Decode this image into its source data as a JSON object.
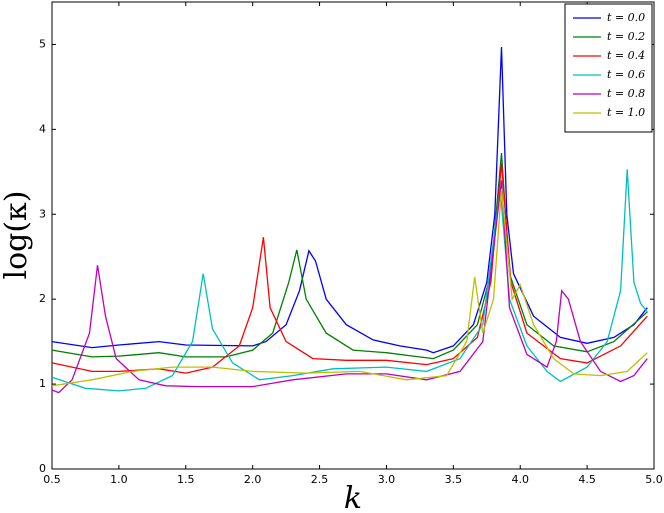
{
  "chart_data": {
    "type": "line",
    "x_label": "k",
    "y_label": "log(κ)",
    "xlim": [
      0.5,
      5.0
    ],
    "ylim": [
      0,
      5.5
    ],
    "xticks": [
      0.5,
      {
        "value": 1,
        "label": "1.0"
      },
      1.5,
      {
        "value": 2,
        "label": "2.0"
      },
      2.5,
      {
        "value": 3,
        "label": "3.0"
      },
      3.5,
      {
        "value": 4,
        "label": "4.0"
      },
      4.5,
      {
        "value": 5,
        "label": "5.0"
      }
    ],
    "yticks": [
      0,
      1,
      2,
      3,
      4,
      5
    ],
    "legend": "upper right",
    "series": [
      {
        "name": "t = 0.0",
        "color": "#0000ff",
        "x": [
          0.5,
          0.8,
          1.0,
          1.3,
          1.5,
          2.0,
          2.1,
          2.25,
          2.35,
          2.42,
          2.47,
          2.55,
          2.7,
          2.9,
          3.1,
          3.3,
          3.35,
          3.5,
          3.65,
          3.75,
          3.81,
          3.86,
          3.9,
          3.95,
          4.1,
          4.3,
          4.5,
          4.7,
          4.85,
          4.95
        ],
        "values": [
          1.5,
          1.43,
          1.46,
          1.5,
          1.46,
          1.45,
          1.5,
          1.7,
          2.1,
          2.57,
          2.45,
          2.0,
          1.7,
          1.52,
          1.45,
          1.4,
          1.37,
          1.45,
          1.7,
          2.2,
          3.0,
          4.97,
          3.0,
          2.3,
          1.8,
          1.55,
          1.48,
          1.55,
          1.7,
          1.9
        ]
      },
      {
        "name": "t = 0.2",
        "color": "#008000",
        "x": [
          0.5,
          0.8,
          1.0,
          1.3,
          1.5,
          1.8,
          2.0,
          2.15,
          2.27,
          2.33,
          2.4,
          2.55,
          2.75,
          3.0,
          3.2,
          3.35,
          3.5,
          3.68,
          3.78,
          3.86,
          3.92,
          4.05,
          4.25,
          4.5,
          4.7,
          4.95
        ],
        "values": [
          1.4,
          1.32,
          1.33,
          1.37,
          1.32,
          1.32,
          1.4,
          1.6,
          2.2,
          2.58,
          2.0,
          1.6,
          1.4,
          1.37,
          1.33,
          1.3,
          1.4,
          1.7,
          2.3,
          3.72,
          2.3,
          1.7,
          1.45,
          1.38,
          1.5,
          1.85
        ]
      },
      {
        "name": "t = 0.4",
        "color": "#ff0000",
        "x": [
          0.5,
          0.8,
          1.0,
          1.3,
          1.5,
          1.7,
          1.9,
          2.0,
          2.08,
          2.13,
          2.25,
          2.45,
          2.7,
          3.0,
          3.3,
          3.5,
          3.68,
          3.78,
          3.86,
          3.93,
          4.05,
          4.3,
          4.5,
          4.75,
          4.95
        ],
        "values": [
          1.25,
          1.15,
          1.15,
          1.18,
          1.13,
          1.2,
          1.45,
          1.9,
          2.73,
          1.9,
          1.5,
          1.3,
          1.28,
          1.28,
          1.23,
          1.3,
          1.55,
          2.2,
          3.6,
          2.2,
          1.6,
          1.3,
          1.25,
          1.45,
          1.8
        ]
      },
      {
        "name": "t = 0.6",
        "color": "#00bfbf",
        "x": [
          0.5,
          0.75,
          1.0,
          1.2,
          1.4,
          1.55,
          1.63,
          1.7,
          1.85,
          2.05,
          2.3,
          2.6,
          3.0,
          3.3,
          3.55,
          3.72,
          3.85,
          3.92,
          4.05,
          4.2,
          4.3,
          4.5,
          4.65,
          4.75,
          4.8,
          4.85,
          4.9,
          4.95
        ],
        "values": [
          1.08,
          0.95,
          0.92,
          0.95,
          1.1,
          1.5,
          2.3,
          1.65,
          1.25,
          1.05,
          1.1,
          1.18,
          1.2,
          1.15,
          1.3,
          1.7,
          3.3,
          2.0,
          1.45,
          1.15,
          1.03,
          1.2,
          1.5,
          2.1,
          3.53,
          2.2,
          1.95,
          1.85
        ]
      },
      {
        "name": "t = 0.8",
        "color": "#bf00bf",
        "x": [
          0.5,
          0.55,
          0.65,
          0.78,
          0.84,
          0.9,
          0.98,
          1.15,
          1.35,
          1.6,
          2.0,
          2.3,
          2.7,
          3.0,
          3.3,
          3.55,
          3.72,
          3.86,
          3.92,
          4.05,
          4.2,
          4.27,
          4.31,
          4.36,
          4.45,
          4.6,
          4.75,
          4.85,
          4.95
        ],
        "values": [
          0.93,
          0.9,
          1.05,
          1.6,
          2.4,
          1.8,
          1.3,
          1.05,
          0.98,
          0.97,
          0.97,
          1.05,
          1.12,
          1.12,
          1.05,
          1.15,
          1.5,
          3.4,
          1.9,
          1.35,
          1.2,
          1.5,
          2.1,
          2.0,
          1.5,
          1.15,
          1.03,
          1.1,
          1.3
        ]
      },
      {
        "name": "t = 1.0",
        "color": "#bfbf00",
        "x": [
          0.5,
          0.8,
          1.1,
          1.4,
          1.7,
          2.0,
          2.4,
          2.8,
          3.15,
          3.45,
          3.6,
          3.66,
          3.72,
          3.8,
          3.86,
          3.94,
          4.0,
          4.1,
          4.25,
          4.4,
          4.6,
          4.8,
          4.95
        ],
        "values": [
          0.98,
          1.05,
          1.15,
          1.2,
          1.2,
          1.15,
          1.13,
          1.15,
          1.05,
          1.1,
          1.5,
          2.26,
          1.6,
          2.0,
          3.3,
          2.0,
          2.17,
          1.7,
          1.3,
          1.12,
          1.1,
          1.15,
          1.37
        ]
      }
    ]
  }
}
